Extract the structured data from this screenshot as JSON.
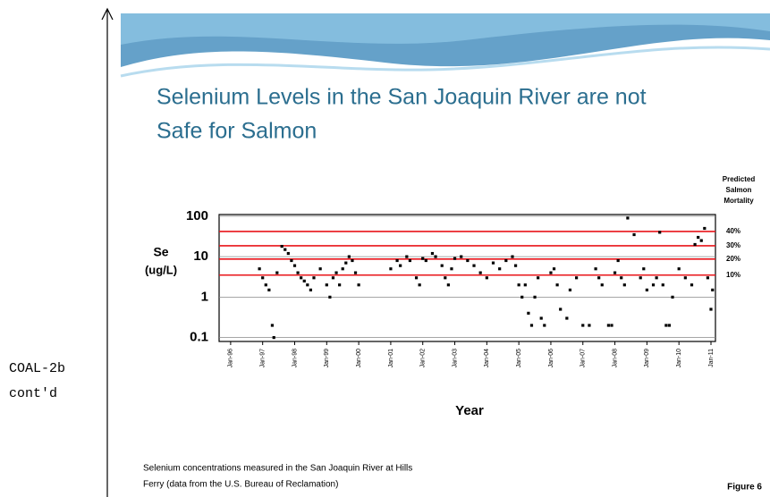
{
  "margin_note": [
    "COAL-2b",
    "cont'd"
  ],
  "chart_data": {
    "type": "scatter",
    "title": [
      "Selenium Levels in the San Joaquin River are not",
      "Safe for Salmon"
    ],
    "ylabel": [
      "Se",
      "(ug/L)"
    ],
    "xlabel": "Year",
    "log_y": true,
    "grid": true,
    "color": "#000000",
    "xlim": [
      1995.64,
      2011.14
    ],
    "xticks": [
      {
        "value": 1996,
        "label": "Jan-96"
      },
      {
        "value": 1997,
        "label": "Jan-97"
      },
      {
        "value": 1998,
        "label": "Jan-98"
      },
      {
        "value": 1999,
        "label": "Jan-99"
      },
      {
        "value": 2000,
        "label": "Jan-00"
      },
      {
        "value": 2001,
        "label": "Jan-01"
      },
      {
        "value": 2002,
        "label": "Jan-02"
      },
      {
        "value": 2003,
        "label": "Jan-03"
      },
      {
        "value": 2004,
        "label": "Jan-04"
      },
      {
        "value": 2005,
        "label": "Jan-05"
      },
      {
        "value": 2006,
        "label": "Jan-06"
      },
      {
        "value": 2007,
        "label": "Jan-07"
      },
      {
        "value": 2008,
        "label": "Jan-08"
      },
      {
        "value": 2009,
        "label": "Jan-09"
      },
      {
        "value": 2010,
        "label": "Jan-10"
      },
      {
        "value": 2011,
        "label": "Jan-11"
      }
    ],
    "ylim": [
      0.08,
      110
    ],
    "yticks": [
      0.1,
      1,
      10,
      100
    ],
    "reference_title": [
      "Predicted",
      "Salmon",
      "Mortality"
    ],
    "reference_color": "#e8141a",
    "reference_lines": [
      {
        "value": 42,
        "label": "40%"
      },
      {
        "value": 18.6,
        "label": "30%"
      },
      {
        "value": 8.7,
        "label": "20%"
      },
      {
        "value": 3.5,
        "label": "10%"
      }
    ],
    "x": [
      1996.9,
      1997.0,
      1997.1,
      1997.2,
      1997.3,
      1997.35,
      1997.45,
      1997.6,
      1997.7,
      1997.8,
      1997.9,
      1998.0,
      1998.1,
      1998.2,
      1998.3,
      1998.4,
      1998.5,
      1998.6,
      1998.8,
      1999.0,
      1999.1,
      1999.2,
      1999.3,
      1999.4,
      1999.5,
      1999.6,
      1999.7,
      1999.8,
      1999.9,
      2000.0,
      2001.0,
      2001.2,
      2001.3,
      2001.5,
      2001.6,
      2001.8,
      2001.9,
      2002.0,
      2002.1,
      2002.3,
      2002.4,
      2002.6,
      2002.7,
      2002.8,
      2002.9,
      2003.0,
      2003.2,
      2003.4,
      2003.6,
      2003.8,
      2004.0,
      2004.2,
      2004.4,
      2004.6,
      2004.8,
      2004.9,
      2005.0,
      2005.1,
      2005.2,
      2005.3,
      2005.4,
      2005.5,
      2005.6,
      2005.7,
      2005.8,
      2006.0,
      2006.1,
      2006.2,
      2006.3,
      2006.5,
      2006.6,
      2006.8,
      2007.0,
      2007.2,
      2007.4,
      2007.5,
      2007.6,
      2007.8,
      2007.9,
      2008.0,
      2008.1,
      2008.2,
      2008.3,
      2008.4,
      2008.6,
      2008.8,
      2008.9,
      2009.0,
      2009.2,
      2009.3,
      2009.4,
      2009.5,
      2009.6,
      2009.7,
      2009.8,
      2010.0,
      2010.2,
      2010.4,
      2010.5,
      2010.6,
      2010.7,
      2010.8,
      2010.9,
      2011.0,
      2011.05
    ],
    "values": [
      5,
      3,
      2,
      1.5,
      0.2,
      0.1,
      4,
      18,
      15,
      12,
      8,
      6,
      4,
      3,
      2.5,
      2,
      1.5,
      3,
      5,
      2,
      1,
      3,
      4,
      2,
      5,
      7,
      10,
      8,
      4,
      2,
      5,
      8,
      6,
      10,
      8,
      3,
      2,
      9,
      8,
      12,
      10,
      6,
      3,
      2,
      5,
      9,
      10,
      8,
      6,
      4,
      3,
      7,
      5,
      8,
      10,
      6,
      2,
      1,
      2,
      0.4,
      0.2,
      1,
      3,
      0.3,
      0.2,
      4,
      5,
      2,
      0.5,
      0.3,
      1.5,
      3,
      0.2,
      0.2,
      5,
      3,
      2,
      0.2,
      0.2,
      4,
      8,
      3,
      2,
      90,
      35,
      3,
      5,
      1.5,
      2,
      3,
      40,
      2,
      0.2,
      0.2,
      1,
      5,
      3,
      2,
      20,
      30,
      25,
      50,
      3,
      0.5,
      1.5
    ]
  },
  "caption": [
    "Selenium concentrations measured in the San Joaquin River at Hills",
    "Ferry (data from the U.S. Bureau of Reclamation)"
  ],
  "figure_label": "Figure 6"
}
